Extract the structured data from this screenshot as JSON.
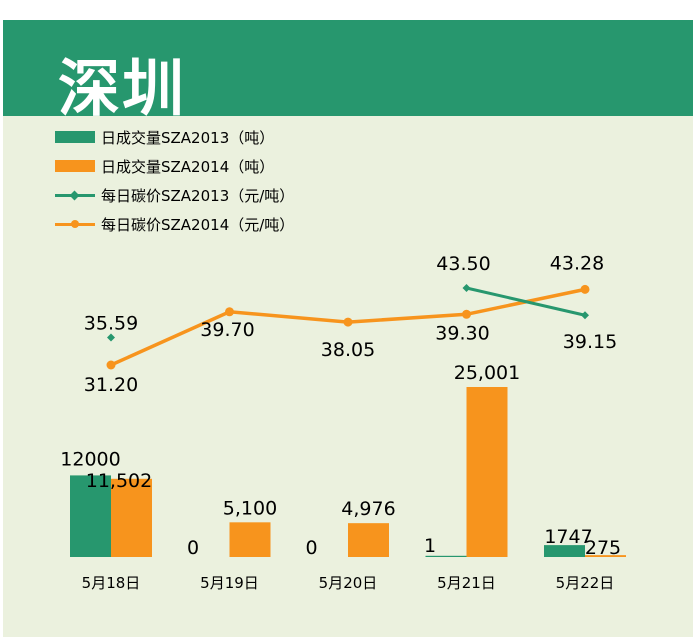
{
  "title": "深圳",
  "colors": {
    "header": "#27976e",
    "panel": "#ebf1de",
    "green": "#27976e",
    "orange": "#f7941d"
  },
  "legend": [
    {
      "label": "日成交量SZA2013（吨）",
      "kind": "bar",
      "color": "#27976e"
    },
    {
      "label": "日成交量SZA2014（吨）",
      "kind": "bar",
      "color": "#f7941d"
    },
    {
      "label": "每日碳价SZA2013（元/吨）",
      "kind": "line",
      "marker": "diamond",
      "color": "#27976e"
    },
    {
      "label": "每日碳价SZA2014（元/吨）",
      "kind": "line",
      "marker": "circle",
      "color": "#f7941d"
    }
  ],
  "chart_data": {
    "type": "bar",
    "categories": [
      "5月18日",
      "5月19日",
      "5月20日",
      "5月21日",
      "5月22日"
    ],
    "series": [
      {
        "name": "日成交量SZA2013（吨）",
        "kind": "bar",
        "values": [
          12000,
          0,
          0,
          1,
          1747
        ],
        "value_labels": [
          "12000",
          "0",
          "0",
          "1",
          "1747"
        ]
      },
      {
        "name": "日成交量SZA2014（吨）",
        "kind": "bar",
        "values": [
          11502,
          5100,
          4976,
          25001,
          275
        ],
        "value_labels": [
          "11,502",
          "5,100",
          "4,976",
          "25,001",
          "275"
        ]
      },
      {
        "name": "每日碳价SZA2013（元/吨）",
        "kind": "line",
        "values": [
          35.59,
          null,
          null,
          43.5,
          39.15
        ],
        "value_labels": [
          "35.59",
          "",
          "",
          "43.50",
          "39.15"
        ]
      },
      {
        "name": "每日碳价SZA2014（元/吨）",
        "kind": "line",
        "values": [
          31.2,
          39.7,
          38.05,
          39.3,
          43.28
        ],
        "value_labels": [
          "31.20",
          "39.70",
          "38.05",
          "39.30",
          "43.28"
        ]
      }
    ],
    "volume_axis_range": [
      0,
      25001
    ],
    "price_axis_range": [
      31.2,
      43.5
    ],
    "gridlines": false,
    "legend_position": "top-left"
  }
}
